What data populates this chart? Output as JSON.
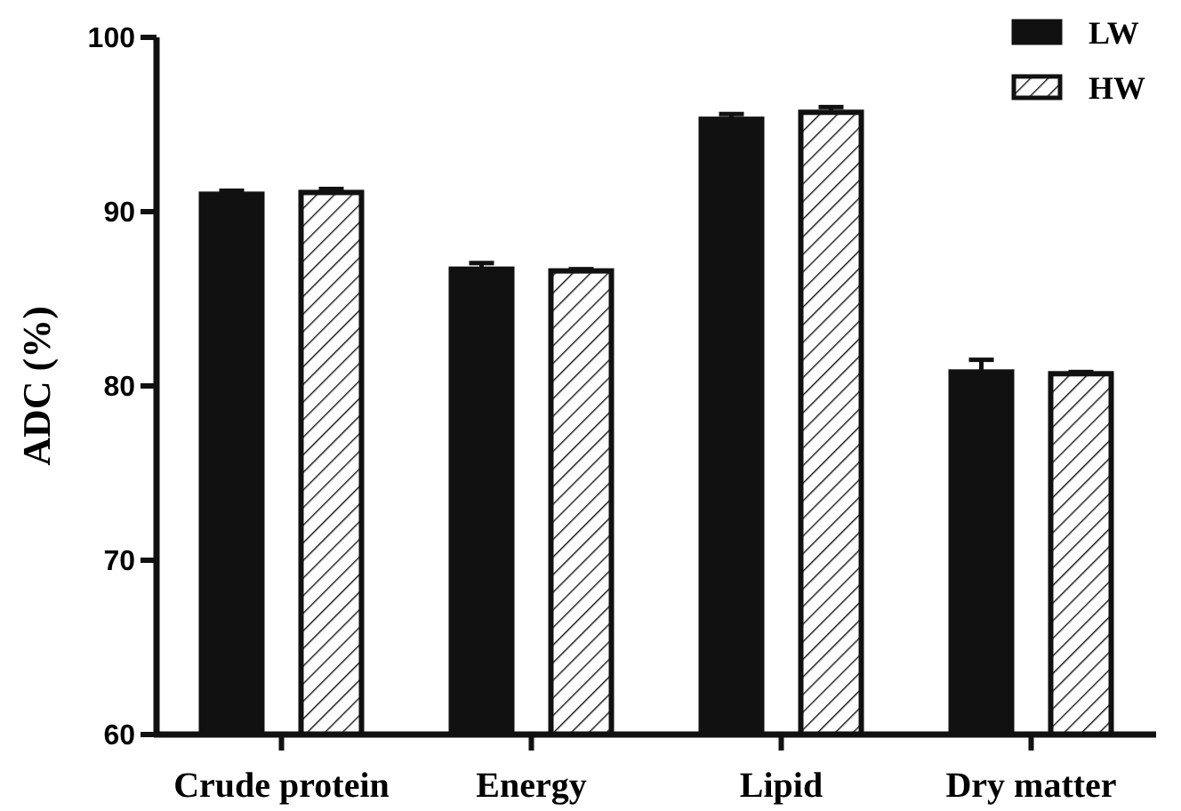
{
  "chart_data": {
    "type": "bar",
    "ylabel": "ADC (%)",
    "categories": [
      "Crude protein",
      "Energy",
      "Lipid",
      "Dry matter"
    ],
    "series": [
      {
        "name": "LW",
        "color": "#111111",
        "values": [
          91.0,
          86.7,
          95.3,
          80.8
        ],
        "errors": [
          0.2,
          0.35,
          0.3,
          0.7
        ]
      },
      {
        "name": "HW",
        "color": "#ffffff",
        "values": [
          91.1,
          86.6,
          95.7,
          80.7
        ],
        "errors": [
          0.2,
          0.1,
          0.3,
          0.1
        ]
      }
    ],
    "ylim": [
      60,
      100
    ],
    "yticks": [
      60,
      70,
      80,
      90,
      100
    ],
    "grid": false,
    "legend": "top right"
  }
}
